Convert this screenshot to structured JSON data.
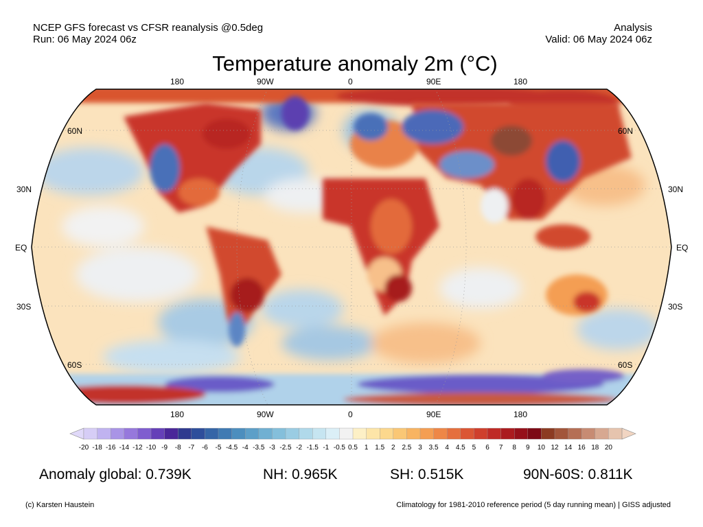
{
  "header": {
    "left_line1": "NCEP GFS forecast vs CFSR reanalysis @0.5deg",
    "left_line2": "Run: 06 May 2024 06z",
    "right_line1": "Analysis",
    "right_line2": "Valid: 06 May 2024 06z"
  },
  "map": {
    "title": "Temperature anomaly 2m (°C)",
    "projection": "robinson",
    "lon_labels_top": [
      "180",
      "90W",
      "0",
      "90E",
      "180"
    ],
    "lon_labels_bottom": [
      "180",
      "90W",
      "0",
      "90E",
      "180"
    ],
    "lat_labels_left": [
      "60N",
      "30N",
      "EQ",
      "30S",
      "60S"
    ],
    "lat_labels_right": [
      "60N",
      "30N",
      "EQ",
      "30S",
      "60S"
    ]
  },
  "colorbar": {
    "labels": [
      "-20",
      "-18",
      "-16",
      "-14",
      "-12",
      "-10",
      "-9",
      "-8",
      "-7",
      "-6",
      "-5",
      "-4.5",
      "-4",
      "-3.5",
      "-3",
      "-2.5",
      "-2",
      "-1.5",
      "-1",
      "-0.5",
      "0.5",
      "1",
      "1.5",
      "2",
      "2.5",
      "3",
      "3.5",
      "4",
      "4.5",
      "5",
      "6",
      "7",
      "8",
      "9",
      "10",
      "12",
      "14",
      "16",
      "18",
      "20"
    ],
    "colors": [
      "#d6cdf6",
      "#c0b3f0",
      "#a994e6",
      "#9678dc",
      "#7f5dcf",
      "#6540b8",
      "#4a2799",
      "#2f3a8f",
      "#2e4e9b",
      "#3565a7",
      "#3f7ab3",
      "#4c8ebe",
      "#5d9fc8",
      "#70b0d2",
      "#84bfdb",
      "#9acce3",
      "#b0d9ea",
      "#c6e5f1",
      "#dbeff7",
      "#f2f2f2",
      "#fdf0c6",
      "#fde5a8",
      "#fcd88d",
      "#fac775",
      "#f8b462",
      "#f49e53",
      "#ee8747",
      "#e56f3d",
      "#db5634",
      "#cf3f2c",
      "#bf2a25",
      "#ab1b1f",
      "#96101a",
      "#7d0a15",
      "#8c3b22",
      "#a2553a",
      "#b56f55",
      "#c78b73",
      "#d7a891",
      "#e6c4ae"
    ],
    "left_arrow_color": "#e0d9f9",
    "right_arrow_color": "#f1d5c2"
  },
  "stats": {
    "global": "Anomaly global: 0.739K",
    "nh": "NH: 0.965K",
    "sh": "SH: 0.515K",
    "arctic": "90N-60S: 0.811K"
  },
  "footer": {
    "credit": "(c) Karsten Haustein",
    "note": "Climatology for 1981-2010 reference period (5 day running mean) | GISS adjusted"
  }
}
